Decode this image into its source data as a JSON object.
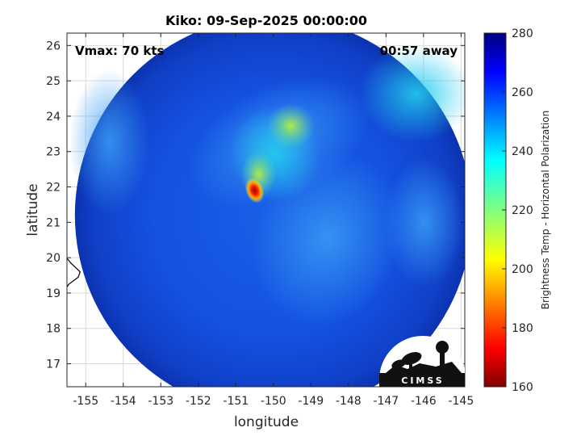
{
  "chart_data": {
    "type": "heatmap",
    "title": "Kiko: 09-Sep-2025 00:00:00",
    "annotations": {
      "vmax": "Vmax: 70 kts",
      "time_away": "00:57 away"
    },
    "xlabel": "longitude",
    "ylabel": "latitude",
    "xlim": [
      -155.5,
      -144.9
    ],
    "ylim": [
      16.35,
      26.35
    ],
    "xticks": [
      -155,
      -154,
      -153,
      -152,
      -151,
      -150,
      -149,
      -148,
      -147,
      -146,
      -145
    ],
    "xtick_labels": [
      "-155",
      "-154",
      "-153",
      "-152",
      "-151",
      "-150",
      "-149",
      "-148",
      "-147",
      "-146",
      "-145"
    ],
    "yticks": [
      17,
      18,
      19,
      20,
      21,
      22,
      23,
      24,
      25,
      26
    ],
    "ytick_labels": [
      "17",
      "18",
      "19",
      "20",
      "21",
      "22",
      "23",
      "24",
      "25",
      "26"
    ],
    "grid": true,
    "swath_center": {
      "lon": -150.0,
      "lat": 21.2
    },
    "storm_center": {
      "lon": -150.5,
      "lat": 21.9
    },
    "colorbar": {
      "label": "Brightness Temp - Horizontal Polarization",
      "range": [
        160,
        280
      ],
      "ticks": [
        160,
        180,
        200,
        220,
        240,
        260,
        280
      ],
      "tick_labels": [
        "160",
        "180",
        "200",
        "220",
        "240",
        "260",
        "280"
      ],
      "colormap": "jet"
    },
    "coastline_color": "#000000",
    "logo_text": "CIMSS"
  }
}
